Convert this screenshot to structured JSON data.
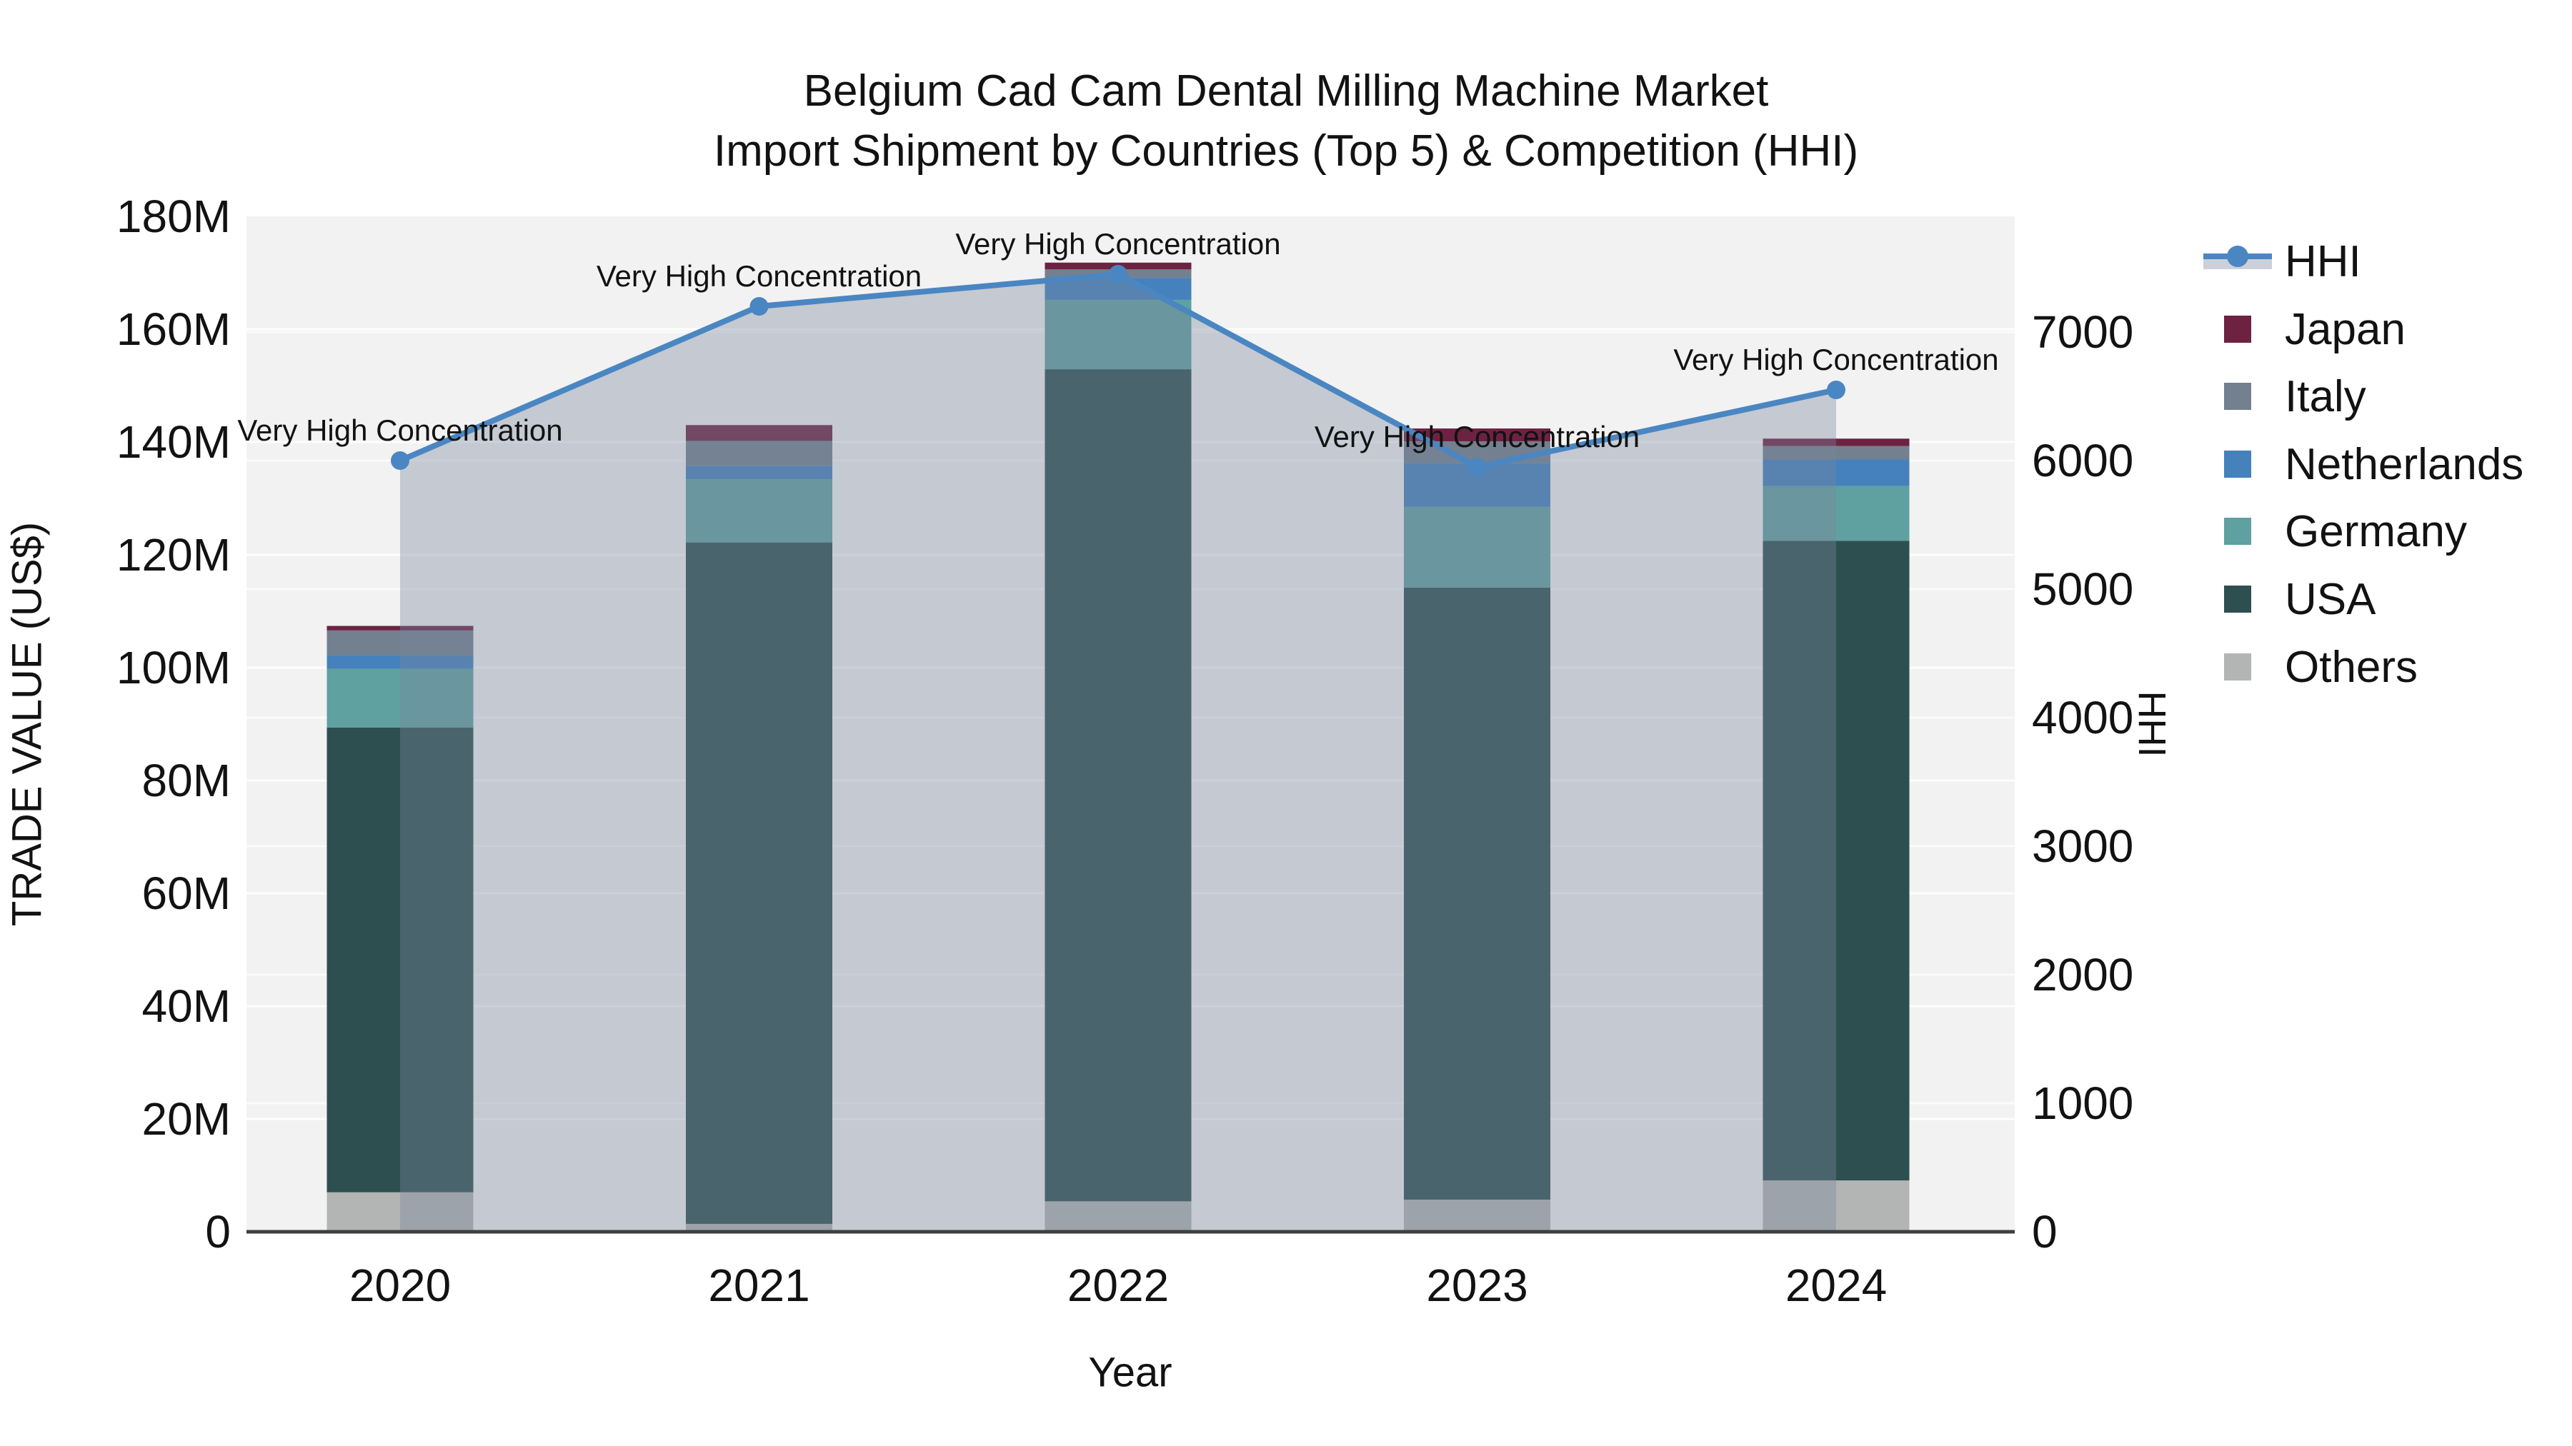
{
  "title": {
    "line1": "Belgium Cad Cam Dental Milling Machine Market",
    "line2": "Import Shipment by Countries (Top 5) & Competition (HHI)"
  },
  "axes": {
    "x": {
      "title": "Year",
      "ticks": [
        "2020",
        "2021",
        "2022",
        "2023",
        "2024"
      ]
    },
    "left": {
      "title": "TRADE VALUE (US$)",
      "ticks": [
        "0",
        "20M",
        "40M",
        "60M",
        "80M",
        "100M",
        "120M",
        "140M",
        "160M",
        "180M"
      ],
      "tick_values_millions": [
        0,
        20,
        40,
        60,
        80,
        100,
        120,
        140,
        160,
        180
      ]
    },
    "right": {
      "title": "HHI",
      "ticks": [
        "0",
        "1000",
        "2000",
        "3000",
        "4000",
        "5000",
        "6000",
        "7000"
      ],
      "tick_values": [
        0,
        1000,
        2000,
        3000,
        4000,
        5000,
        6000,
        7000
      ]
    }
  },
  "chart_data": {
    "type": "bar",
    "subtype": "stacked-bar-with-line",
    "title": "Belgium Cad Cam Dental Milling Machine Market Import Shipment by Countries (Top 5) & Competition (HHI)",
    "xlabel": "Year",
    "ylabel": "TRADE VALUE (US$)",
    "y2label": "HHI",
    "categories": [
      "2020",
      "2021",
      "2022",
      "2023",
      "2024"
    ],
    "unit": "million US$",
    "ylim_millions": [
      0,
      180
    ],
    "y2lim": [
      0,
      7900
    ],
    "grid": true,
    "legend_position": "right",
    "series": [
      {
        "name": "Others",
        "color": "#b2b5b4",
        "values": [
          7.0,
          1.4,
          5.4,
          5.7,
          9.1
        ]
      },
      {
        "name": "USA",
        "color": "#2e4f4f",
        "values": [
          82.4,
          120.8,
          147.5,
          108.5,
          113.4
        ]
      },
      {
        "name": "Germany",
        "color": "#5fa0a1",
        "values": [
          10.4,
          11.2,
          12.3,
          14.3,
          9.7
        ]
      },
      {
        "name": "Netherlands",
        "color": "#4581bc",
        "values": [
          2.4,
          2.4,
          3.9,
          7.8,
          4.7
        ]
      },
      {
        "name": "Italy",
        "color": "#72808f",
        "values": [
          4.4,
          4.4,
          1.5,
          3.8,
          2.4
        ]
      },
      {
        "name": "Japan",
        "color": "#6e2242",
        "values": [
          0.8,
          2.8,
          1.2,
          2.3,
          1.3
        ]
      }
    ],
    "bar_totals_millions": [
      107.4,
      143.0,
      171.8,
      142.4,
      140.6
    ],
    "line_series": {
      "name": "HHI",
      "axis": "right",
      "color": "#4a86c2",
      "area_color": "rgba(120,133,158,0.38)",
      "values": [
        6000,
        7200,
        7450,
        5950,
        6550
      ]
    },
    "annotations": [
      {
        "x": "2020",
        "text": "Very High Concentration"
      },
      {
        "x": "2021",
        "text": "Very High Concentration"
      },
      {
        "x": "2022",
        "text": "Very High Concentration"
      },
      {
        "x": "2023",
        "text": "Very High Concentration"
      },
      {
        "x": "2024",
        "text": "Very High Concentration"
      }
    ]
  },
  "legend": {
    "items": [
      {
        "label": "HHI",
        "type": "line",
        "color": "#4a86c2",
        "band_color": "#ccd1d9"
      },
      {
        "label": "Japan",
        "type": "square",
        "color": "#6e2242"
      },
      {
        "label": "Italy",
        "type": "square",
        "color": "#72808f"
      },
      {
        "label": "Netherlands",
        "type": "square",
        "color": "#4581bc"
      },
      {
        "label": "Germany",
        "type": "square",
        "color": "#5fa0a1"
      },
      {
        "label": "USA",
        "type": "square",
        "color": "#2e4f4f"
      },
      {
        "label": "Others",
        "type": "square",
        "color": "#b2b5b4"
      }
    ]
  }
}
